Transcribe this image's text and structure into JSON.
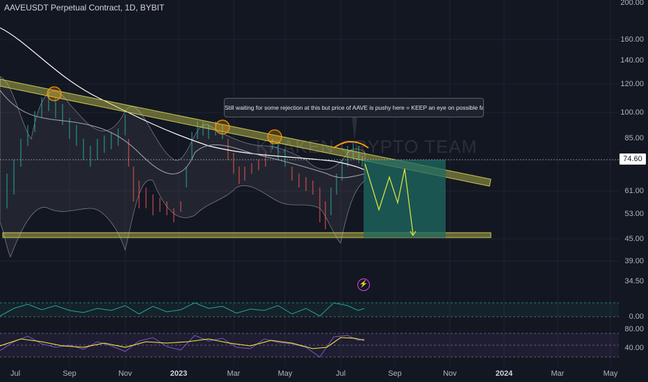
{
  "header": {
    "title": "AAVEUSDT Perpetual Contract, 1D, BYBIT"
  },
  "price_axis": {
    "ticks": [
      "200.00",
      "160.00",
      "140.00",
      "120.00",
      "100.00",
      "85.00",
      "61.00",
      "53.00",
      "45.00",
      "39.00",
      "34.50"
    ],
    "current_price": "74.60"
  },
  "rsi_axis": {
    "ticks": [
      "0.00"
    ]
  },
  "stoch_axis": {
    "ticks": [
      "80.00",
      "40.00"
    ]
  },
  "time_axis": {
    "labels": [
      "Jul",
      "Sep",
      "Nov",
      "2023",
      "Mar",
      "May",
      "Jul",
      "Sep",
      "Nov",
      "2024",
      "Mar",
      "May"
    ]
  },
  "annotation": {
    "text": "Still waiting for some rejection at this but price of AAVE is pushy here = KEEP an eye on possible fakeout!",
    "watermark": "KRAKEN CRYPTO TEAM"
  },
  "colors": {
    "background": "#131722",
    "trendline": "#c8c850",
    "target_box": "#1e6b63",
    "bull": "#26a69a",
    "bear": "#ef5350",
    "rejection_circle": "#ff9800",
    "rsi_line": "#26a69a",
    "stoch_k": "#7e57c2",
    "stoch_d": "#ffeb3b"
  },
  "icons": {
    "alert": "lightning-icon"
  }
}
